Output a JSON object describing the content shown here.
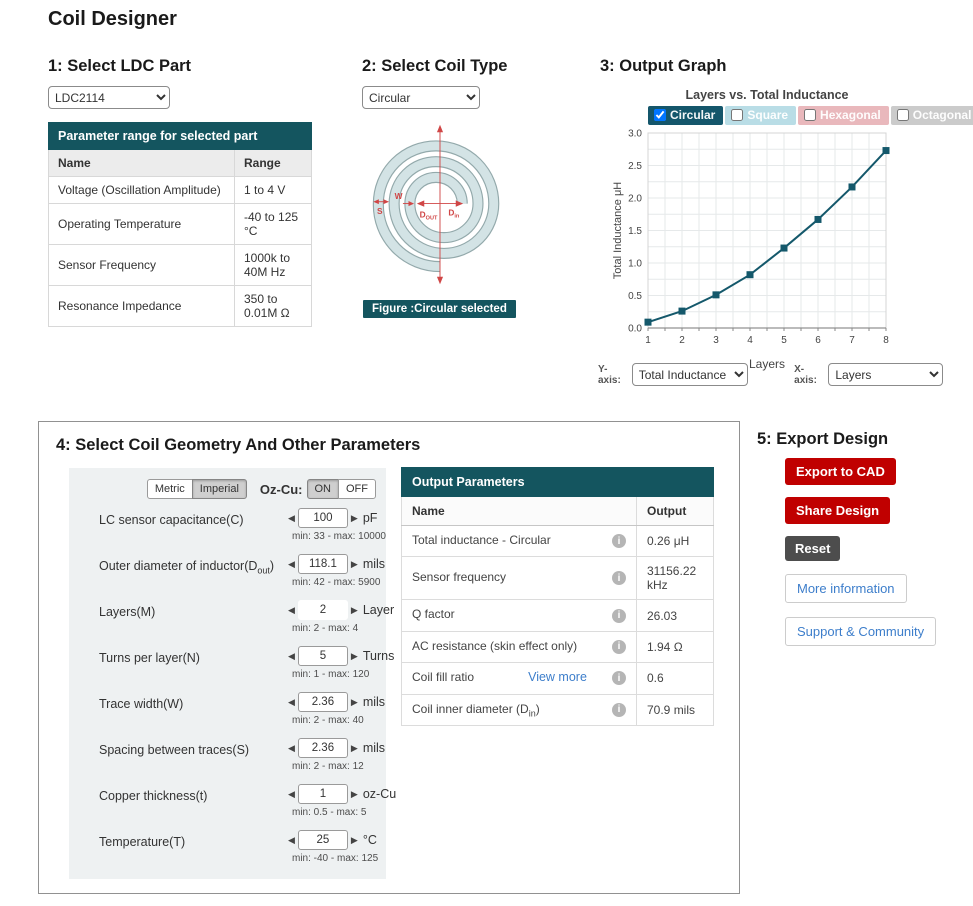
{
  "page": {
    "title": "Coil Designer"
  },
  "ldc": {
    "heading": "1: Select LDC Part",
    "selected_part": "LDC2114",
    "table": {
      "title": "Parameter range for selected part",
      "col_name": "Name",
      "col_range": "Range",
      "rows": [
        {
          "name": "Voltage (Oscillation Amplitude)",
          "range": "1 to 4 V"
        },
        {
          "name": "Operating Temperature",
          "range": "-40 to 125 °C"
        },
        {
          "name": "Sensor Frequency",
          "range": "1000k to 40M Hz"
        },
        {
          "name": "Resonance Impedance",
          "range": "350 to 0.01M Ω"
        }
      ]
    }
  },
  "coil_type": {
    "heading": "2: Select Coil Type",
    "selected_type": "Circular",
    "figure_caption": "Figure :Circular selected",
    "figure_labels": {
      "s": "S",
      "w": "W",
      "dout_main": "D",
      "dout_sub": "OUT",
      "din_main": "D",
      "din_sub": "in"
    }
  },
  "graph": {
    "heading": "3: Output Graph",
    "y_axis_label": "Y-axis:",
    "x_axis_label": "X-axis:",
    "y_axis_value": "Total Inductance",
    "x_axis_value": "Layers"
  },
  "chart_data": {
    "type": "line",
    "title": "Layers vs. Total Inductance",
    "xlabel": "Layers",
    "ylabel": "Total Inductance μH",
    "x": [
      1,
      2,
      3,
      4,
      5,
      6,
      7,
      8
    ],
    "series": [
      {
        "name": "Circular",
        "color": "#14586b",
        "values": [
          0.09,
          0.26,
          0.51,
          0.82,
          1.23,
          1.67,
          2.17,
          2.73
        ]
      }
    ],
    "xlim": [
      1,
      8
    ],
    "ylim": [
      0,
      3
    ],
    "x_ticks": [
      1,
      2,
      3,
      4,
      5,
      6,
      7,
      8
    ],
    "y_ticks": [
      "0.0",
      "0.5",
      "1.0",
      "1.5",
      "2.0",
      "2.5",
      "3.0"
    ],
    "grid": true,
    "legend_position": "top",
    "legend": [
      {
        "label": "Circular",
        "bg": "#14566b",
        "checked": true
      },
      {
        "label": "Square",
        "bg": "#b9dde6",
        "checked": false
      },
      {
        "label": "Hexagonal",
        "bg": "#e9b8bc",
        "checked": false
      },
      {
        "label": "Octagonal",
        "bg": "#cbcbcb",
        "checked": false
      }
    ]
  },
  "geometry": {
    "heading": "4: Select Coil Geometry And Other Parameters",
    "unit_toggle": {
      "metric": "Metric",
      "imperial": "Imperial",
      "selected": "Imperial"
    },
    "ozcu": {
      "label": "Oz-Cu:",
      "on": "ON",
      "off": "OFF",
      "selected": "ON"
    },
    "parameters": [
      {
        "label_pre": "LC sensor capacitance(C)",
        "value": "100",
        "unit": "pF",
        "range": "min: 33 - max: 10000"
      },
      {
        "label_pre": "Outer diameter of inductor(D",
        "label_sub": "out",
        "label_post": ")",
        "value": "118.1",
        "unit": "mils",
        "range": "min: 42 - max: 5900"
      },
      {
        "label_pre": "Layers(M)",
        "value": "2",
        "unit": "Layer",
        "range": "min: 2 - max: 4"
      },
      {
        "label_pre": "Turns per layer(N)",
        "value": "5",
        "unit": "Turns",
        "range": "min: 1 - max: 120"
      },
      {
        "label_pre": "Trace width(W)",
        "value": "2.36",
        "unit": "mils",
        "range": "min: 2 - max: 40"
      },
      {
        "label_pre": "Spacing between traces(S)",
        "value": "2.36",
        "unit": "mils",
        "range": "min: 2 - max: 12"
      },
      {
        "label_pre": "Copper thickness(t)",
        "value": "1",
        "unit": "oz-Cu",
        "range": "min: 0.5 - max: 5"
      },
      {
        "label_pre": "Temperature(T)",
        "value": "25",
        "unit": "°C",
        "range": "min: -40 - max: 125"
      }
    ]
  },
  "output": {
    "table_title": "Output Parameters",
    "col_name": "Name",
    "col_output": "Output",
    "rows": [
      {
        "name_pre": "Total inductance - Circular",
        "value": "0.26 μH"
      },
      {
        "name_pre": "Sensor frequency",
        "value": "31156.22 kHz"
      },
      {
        "name_pre": "Q factor",
        "value": "26.03"
      },
      {
        "name_pre": "AC resistance (skin effect only)",
        "value": "1.94 Ω"
      },
      {
        "name_pre": "Coil fill ratio",
        "value": "0.6"
      },
      {
        "name_pre": "Coil inner diameter (D",
        "name_sub": "in",
        "name_post": ")",
        "value": "70.9 mils"
      }
    ],
    "view_more": "View more"
  },
  "export": {
    "heading": "5: Export Design",
    "export_cad": "Export to CAD",
    "share": "Share Design",
    "reset": "Reset",
    "more_info": "More information",
    "support": "Support & Community"
  },
  "colors": {
    "teal_header": "#14555f",
    "chart_line": "#14586b",
    "brand_red": "#c00000",
    "link_blue": "#3d7ecb",
    "figure_fill": "#d3e3e5",
    "figure_annotation_red": "#d04646"
  }
}
